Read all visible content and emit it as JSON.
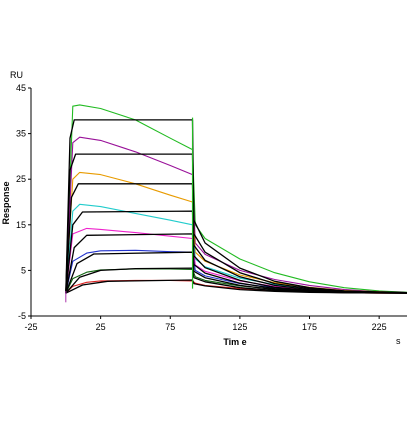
{
  "chart_data": {
    "type": "line",
    "title": "",
    "xlabel": "Tim e",
    "ylabel": "Response",
    "y_unit": "RU",
    "x_unit": "s",
    "xlim": [
      -25,
      245
    ],
    "ylim": [
      -5,
      45
    ],
    "x_ticks": [
      -25,
      25,
      75,
      125,
      175,
      225
    ],
    "y_ticks": [
      -5,
      5,
      15,
      25,
      35,
      45
    ],
    "x_tick_labels": [
      "-25",
      "25",
      "75",
      "125",
      "175",
      "225"
    ],
    "y_tick_labels": [
      "-5",
      "5",
      "15",
      "25",
      "35",
      "45"
    ],
    "grid": false,
    "legend": "none",
    "injection_start_s": 0,
    "injection_end_s": 91,
    "series": [
      {
        "color": "#22bb22",
        "curve": "measured",
        "values": [
          [
            0,
            0
          ],
          [
            5,
            41
          ],
          [
            10,
            41.3
          ],
          [
            25,
            40.5
          ],
          [
            50,
            38
          ],
          [
            75,
            34
          ],
          [
            91,
            31.5
          ],
          [
            93,
            15
          ],
          [
            100,
            12
          ],
          [
            125,
            7.5
          ],
          [
            150,
            4.5
          ],
          [
            175,
            2.5
          ],
          [
            200,
            1.2
          ],
          [
            225,
            0.5
          ],
          [
            245,
            0.2
          ]
        ]
      },
      {
        "color": "#991199",
        "curve": "measured",
        "values": [
          [
            0,
            0
          ],
          [
            5,
            33
          ],
          [
            10,
            34.2
          ],
          [
            25,
            33.5
          ],
          [
            50,
            31
          ],
          [
            75,
            28
          ],
          [
            91,
            26
          ],
          [
            93,
            11
          ],
          [
            100,
            8.5
          ],
          [
            125,
            5
          ],
          [
            150,
            3
          ],
          [
            175,
            1.7
          ],
          [
            200,
            0.8
          ],
          [
            225,
            0.3
          ],
          [
            245,
            0.1
          ]
        ]
      },
      {
        "color": "#e89b00",
        "curve": "measured",
        "values": [
          [
            0,
            0
          ],
          [
            5,
            25
          ],
          [
            10,
            26.5
          ],
          [
            25,
            26
          ],
          [
            50,
            24
          ],
          [
            75,
            21.5
          ],
          [
            91,
            20
          ],
          [
            93,
            9
          ],
          [
            100,
            7
          ],
          [
            125,
            4
          ],
          [
            150,
            2.3
          ],
          [
            175,
            1.3
          ],
          [
            200,
            0.6
          ],
          [
            225,
            0.3
          ],
          [
            245,
            0.1
          ]
        ]
      },
      {
        "color": "#22cccc",
        "curve": "measured",
        "values": [
          [
            0,
            0
          ],
          [
            5,
            18
          ],
          [
            10,
            19.5
          ],
          [
            25,
            19
          ],
          [
            50,
            17.5
          ],
          [
            75,
            16
          ],
          [
            91,
            15
          ],
          [
            93,
            7.5
          ],
          [
            100,
            5.8
          ],
          [
            125,
            3.3
          ],
          [
            150,
            1.9
          ],
          [
            175,
            1
          ],
          [
            200,
            0.5
          ],
          [
            225,
            0.2
          ],
          [
            245,
            0.1
          ]
        ]
      },
      {
        "color": "#ee22cc",
        "curve": "measured",
        "values": [
          [
            0,
            0
          ],
          [
            5,
            13
          ],
          [
            15,
            14.2
          ],
          [
            25,
            14
          ],
          [
            50,
            13.3
          ],
          [
            75,
            12.5
          ],
          [
            91,
            12
          ],
          [
            93,
            6.2
          ],
          [
            100,
            4.8
          ],
          [
            125,
            2.7
          ],
          [
            150,
            1.5
          ],
          [
            175,
            0.8
          ],
          [
            200,
            0.4
          ],
          [
            225,
            0.2
          ],
          [
            245,
            0.1
          ]
        ]
      },
      {
        "color": "#2233cc",
        "curve": "measured",
        "values": [
          [
            0,
            0
          ],
          [
            5,
            7
          ],
          [
            15,
            8.8
          ],
          [
            25,
            9.3
          ],
          [
            50,
            9.4
          ],
          [
            75,
            9.1
          ],
          [
            91,
            9
          ],
          [
            93,
            5
          ],
          [
            100,
            3.8
          ],
          [
            125,
            2.1
          ],
          [
            150,
            1.2
          ],
          [
            175,
            0.6
          ],
          [
            200,
            0.3
          ],
          [
            225,
            0.1
          ],
          [
            245,
            0
          ]
        ]
      },
      {
        "color": "#116611",
        "curve": "measured",
        "values": [
          [
            0,
            0
          ],
          [
            5,
            3.2
          ],
          [
            15,
            4.6
          ],
          [
            25,
            5.1
          ],
          [
            50,
            5.3
          ],
          [
            75,
            5.3
          ],
          [
            91,
            5.2
          ],
          [
            93,
            3.6
          ],
          [
            100,
            2.8
          ],
          [
            125,
            1.6
          ],
          [
            150,
            0.9
          ],
          [
            175,
            0.5
          ],
          [
            200,
            0.2
          ],
          [
            225,
            0.1
          ],
          [
            245,
            0
          ]
        ]
      },
      {
        "color": "#dd2222",
        "curve": "measured",
        "values": [
          [
            0,
            0
          ],
          [
            5,
            1.5
          ],
          [
            15,
            2.4
          ],
          [
            25,
            2.7
          ],
          [
            50,
            2.8
          ],
          [
            75,
            2.8
          ],
          [
            91,
            2.7
          ],
          [
            93,
            2.2
          ],
          [
            100,
            1.7
          ],
          [
            125,
            1
          ],
          [
            150,
            0.5
          ],
          [
            175,
            0.3
          ],
          [
            200,
            0.1
          ],
          [
            225,
            0
          ],
          [
            245,
            0
          ]
        ]
      },
      {
        "color": "#000000",
        "curve": "fit",
        "values": [
          [
            0,
            0
          ],
          [
            3,
            34
          ],
          [
            6,
            38
          ],
          [
            91,
            38
          ],
          [
            92,
            16
          ],
          [
            100,
            11
          ],
          [
            125,
            5.5
          ],
          [
            150,
            2.6
          ],
          [
            175,
            1.2
          ],
          [
            200,
            0.5
          ],
          [
            245,
            0.1
          ]
        ]
      },
      {
        "color": "#000000",
        "curve": "fit",
        "values": [
          [
            0,
            0
          ],
          [
            3,
            27
          ],
          [
            7,
            30.5
          ],
          [
            91,
            30.5
          ],
          [
            92,
            13
          ],
          [
            100,
            9
          ],
          [
            125,
            4.5
          ],
          [
            150,
            2.1
          ],
          [
            175,
            1
          ],
          [
            200,
            0.4
          ],
          [
            245,
            0.1
          ]
        ]
      },
      {
        "color": "#000000",
        "curve": "fit",
        "values": [
          [
            0,
            0
          ],
          [
            4,
            21
          ],
          [
            9,
            24
          ],
          [
            91,
            24
          ],
          [
            92,
            10.5
          ],
          [
            100,
            7.2
          ],
          [
            125,
            3.6
          ],
          [
            150,
            1.7
          ],
          [
            175,
            0.8
          ],
          [
            200,
            0.3
          ],
          [
            245,
            0.1
          ]
        ]
      },
      {
        "color": "#000000",
        "curve": "fit",
        "values": [
          [
            0,
            0
          ],
          [
            5,
            15
          ],
          [
            12,
            17.8
          ],
          [
            91,
            18
          ],
          [
            92,
            8.2
          ],
          [
            100,
            5.6
          ],
          [
            125,
            2.8
          ],
          [
            150,
            1.3
          ],
          [
            175,
            0.6
          ],
          [
            200,
            0.3
          ],
          [
            245,
            0.1
          ]
        ]
      },
      {
        "color": "#000000",
        "curve": "fit",
        "values": [
          [
            0,
            0
          ],
          [
            6,
            10
          ],
          [
            15,
            12.7
          ],
          [
            91,
            13
          ],
          [
            92,
            6.3
          ],
          [
            100,
            4.4
          ],
          [
            125,
            2.2
          ],
          [
            150,
            1
          ],
          [
            175,
            0.5
          ],
          [
            200,
            0.2
          ],
          [
            245,
            0.1
          ]
        ]
      },
      {
        "color": "#000000",
        "curve": "fit",
        "values": [
          [
            0,
            0
          ],
          [
            8,
            6.5
          ],
          [
            20,
            8.6
          ],
          [
            91,
            9
          ],
          [
            92,
            4.8
          ],
          [
            100,
            3.4
          ],
          [
            125,
            1.7
          ],
          [
            150,
            0.8
          ],
          [
            175,
            0.4
          ],
          [
            200,
            0.2
          ],
          [
            245,
            0.1
          ]
        ]
      },
      {
        "color": "#000000",
        "curve": "fit",
        "values": [
          [
            0,
            0
          ],
          [
            10,
            3.5
          ],
          [
            25,
            5
          ],
          [
            50,
            5.4
          ],
          [
            91,
            5.5
          ],
          [
            92,
            3.4
          ],
          [
            100,
            2.5
          ],
          [
            125,
            1.2
          ],
          [
            150,
            0.6
          ],
          [
            175,
            0.3
          ],
          [
            200,
            0.1
          ],
          [
            245,
            0
          ]
        ]
      },
      {
        "color": "#000000",
        "curve": "fit",
        "values": [
          [
            0,
            0
          ],
          [
            12,
            1.8
          ],
          [
            30,
            2.6
          ],
          [
            91,
            2.9
          ],
          [
            92,
            2.1
          ],
          [
            100,
            1.6
          ],
          [
            125,
            0.8
          ],
          [
            150,
            0.4
          ],
          [
            175,
            0.2
          ],
          [
            200,
            0.1
          ],
          [
            245,
            0
          ]
        ]
      }
    ]
  }
}
